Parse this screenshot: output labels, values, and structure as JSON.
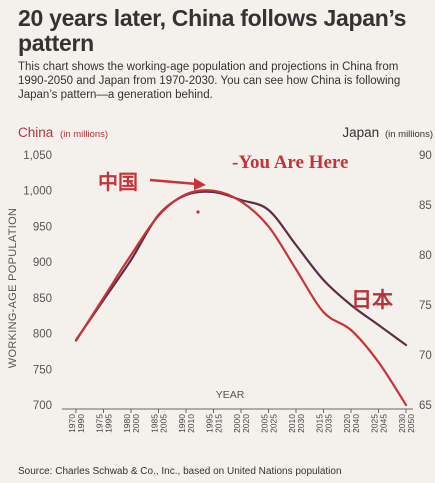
{
  "header": {
    "title": "20 years later, China follows Japan’s pattern",
    "subtitle": "This chart shows the working-age population and projections in China from 1990-2050 and Japan from 1970-2030. You can see how China is following Japan’s pattern—a generation behind.",
    "source": "Source: Charles Schwab & Co., Inc., based on United Nations population"
  },
  "chart_data": {
    "type": "line",
    "xlabel": "YEAR",
    "ylabel": "WORKING-AGE POPULATION",
    "left_axis": {
      "label": "China",
      "unit": "(in millions)",
      "ticks": [
        "1,050",
        "1,000",
        "950",
        "900",
        "850",
        "800",
        "750",
        "700"
      ],
      "ylim": [
        700,
        1050
      ]
    },
    "right_axis": {
      "label": "Japan",
      "unit": "(in millions)",
      "ticks": [
        "90",
        "85",
        "80",
        "75",
        "70",
        "65"
      ],
      "ylim": [
        65,
        90
      ]
    },
    "x_labels": [
      {
        "top": "1970",
        "bottom": "1990"
      },
      {
        "top": "1975",
        "bottom": "1995"
      },
      {
        "top": "1980",
        "bottom": "2000"
      },
      {
        "top": "1985",
        "bottom": "2005"
      },
      {
        "top": "1990",
        "bottom": "2010"
      },
      {
        "top": "1995",
        "bottom": "2015"
      },
      {
        "top": "2000",
        "bottom": "2020"
      },
      {
        "top": "2005",
        "bottom": "2025"
      },
      {
        "top": "2010",
        "bottom": "2030"
      },
      {
        "top": "2015",
        "bottom": "2035"
      },
      {
        "top": "2020",
        "bottom": "2040"
      },
      {
        "top": "2025",
        "bottom": "2045"
      },
      {
        "top": "2030",
        "bottom": "2050"
      }
    ],
    "series": [
      {
        "name": "China",
        "axis": "left",
        "color": "#c8323a",
        "x": [
          1990,
          1995,
          2000,
          2005,
          2010,
          2015,
          2020,
          2025,
          2030,
          2035,
          2040,
          2045,
          2050
        ],
        "values": [
          790,
          850,
          910,
          965,
          995,
          1000,
          985,
          950,
          890,
          830,
          805,
          760,
          700
        ]
      },
      {
        "name": "Japan",
        "axis": "right",
        "color": "#5a2f46",
        "x": [
          1970,
          1975,
          1980,
          1985,
          1990,
          1995,
          2000,
          2005,
          2010,
          2015,
          2020,
          2025,
          2030
        ],
        "values": [
          71.5,
          75.5,
          79.5,
          84,
          86,
          86.3,
          85.5,
          84.5,
          81,
          77.5,
          75,
          73,
          71
        ]
      }
    ],
    "annotations": {
      "china": "中国",
      "japan": "日本",
      "you_are_here": "-You Are Here"
    },
    "annotation_color": "#c8323a",
    "grid": false
  }
}
